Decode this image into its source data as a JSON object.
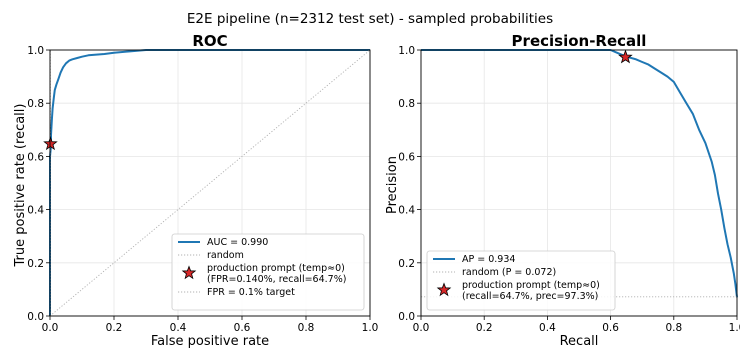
{
  "figure": {
    "suptitle": "E2E pipeline (n=2312 test set) - sampled probabilities"
  },
  "chart_data": [
    {
      "type": "line",
      "title": "ROC",
      "xlabel": "False positive rate",
      "ylabel": "True positive rate (recall)",
      "xlim": [
        0.0,
        1.0
      ],
      "ylim": [
        0.0,
        1.0
      ],
      "xticks": [
        "0.0",
        "0.2",
        "0.4",
        "0.6",
        "0.8",
        "1.0"
      ],
      "yticks": [
        "0.0",
        "0.2",
        "0.4",
        "0.6",
        "0.8",
        "1.0"
      ],
      "grid": true,
      "legend_position": "lower-right",
      "series": [
        {
          "name": "AUC = 0.990",
          "style": "solid",
          "color": "#1f77b4",
          "x": [
            0.0,
            0.0,
            0.003,
            0.003,
            0.006,
            0.008,
            0.012,
            0.015,
            0.02,
            0.026,
            0.033,
            0.041,
            0.05,
            0.06,
            0.07,
            0.085,
            0.1,
            0.12,
            0.14,
            0.17,
            0.2,
            0.3,
            0.5,
            0.7,
            1.0
          ],
          "y": [
            0.0,
            0.6,
            0.64,
            0.68,
            0.74,
            0.78,
            0.82,
            0.85,
            0.87,
            0.89,
            0.915,
            0.935,
            0.95,
            0.96,
            0.965,
            0.97,
            0.975,
            0.98,
            0.982,
            0.985,
            0.99,
            1.0,
            1.0,
            1.0,
            1.0
          ]
        },
        {
          "name": "random",
          "style": "dotted",
          "color": "#b0b0b0",
          "x": [
            0.0,
            1.0
          ],
          "y": [
            0.0,
            1.0
          ]
        },
        {
          "name": "FPR = 0.1% target",
          "style": "dotted",
          "color": "#b0b0b0",
          "x": [
            0.001,
            0.001
          ],
          "y": [
            0.0,
            1.0
          ]
        }
      ],
      "markers": [
        {
          "name": "production prompt (temp≈0)",
          "detail": "(FPR=0.140%, recall=64.7%)",
          "x": 0.0014,
          "y": 0.647,
          "color": "#d62728",
          "shape": "star"
        }
      ]
    },
    {
      "type": "line",
      "title": "Precision-Recall",
      "xlabel": "Recall",
      "ylabel": "Precision",
      "xlim": [
        0.0,
        1.0
      ],
      "ylim": [
        0.0,
        1.0
      ],
      "xticks": [
        "0.0",
        "0.2",
        "0.4",
        "0.6",
        "0.8",
        "1.0"
      ],
      "yticks": [
        "0.0",
        "0.2",
        "0.4",
        "0.6",
        "0.8",
        "1.0"
      ],
      "grid": true,
      "legend_position": "lower-left",
      "series": [
        {
          "name": "AP = 0.934",
          "style": "solid",
          "color": "#1f77b4",
          "x": [
            0.0,
            0.6,
            0.62,
            0.65,
            0.68,
            0.7,
            0.72,
            0.74,
            0.76,
            0.78,
            0.8,
            0.82,
            0.84,
            0.86,
            0.88,
            0.9,
            0.92,
            0.93,
            0.94,
            0.95,
            0.96,
            0.97,
            0.98,
            0.99,
            0.995,
            1.0
          ],
          "y": [
            1.0,
            1.0,
            0.99,
            0.975,
            0.965,
            0.955,
            0.945,
            0.93,
            0.915,
            0.9,
            0.88,
            0.84,
            0.8,
            0.76,
            0.7,
            0.65,
            0.58,
            0.53,
            0.46,
            0.4,
            0.33,
            0.27,
            0.22,
            0.16,
            0.12,
            0.07
          ]
        },
        {
          "name": "random (P = 0.072)",
          "style": "dotted",
          "color": "#b0b0b0",
          "x": [
            0.0,
            1.0
          ],
          "y": [
            0.072,
            0.072
          ]
        }
      ],
      "markers": [
        {
          "name": "production prompt (temp≈0)",
          "detail": "(recall=64.7%, prec=97.3%)",
          "x": 0.647,
          "y": 0.973,
          "color": "#d62728",
          "shape": "star"
        }
      ]
    }
  ]
}
